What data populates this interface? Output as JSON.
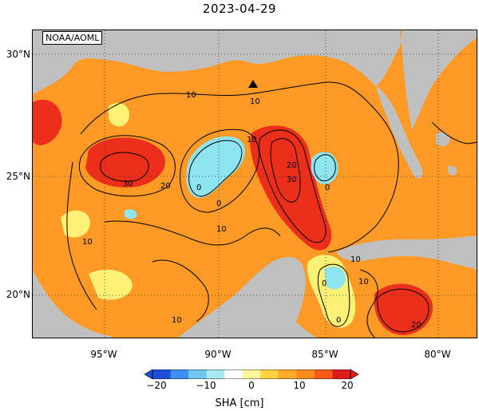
{
  "title": "2023-04-29",
  "credit": "NOAA/AOML",
  "lat_labels": [
    "30°N",
    "25°N",
    "20°N"
  ],
  "lon_labels": [
    "95°W",
    "90°W",
    "85°W",
    "80°W"
  ],
  "contour_labels": [
    "10",
    "10",
    "10",
    "10",
    "10",
    "10",
    "10",
    "20",
    "20",
    "20",
    "30",
    "30",
    "0",
    "0",
    "0",
    "0",
    "0",
    "10"
  ],
  "colorbar": {
    "ticks": [
      "−20",
      "−10",
      "0",
      "10",
      "20"
    ],
    "label": "SHA [cm]",
    "colors": [
      "#1f4fd8",
      "#3f8ff0",
      "#6fc8f0",
      "#a8e8f0",
      "#ffffff",
      "#fff59a",
      "#ffd23f",
      "#ffab27",
      "#ff8a1f",
      "#f55a17",
      "#e01d1d"
    ]
  },
  "colors": {
    "land": "#c0c0c0",
    "ocean_warm": "#ff9a26",
    "ocean_hot": "#ec2f1a",
    "ocean_cool": "#8fe4f2",
    "ocean_neutral": "#fff176"
  }
}
